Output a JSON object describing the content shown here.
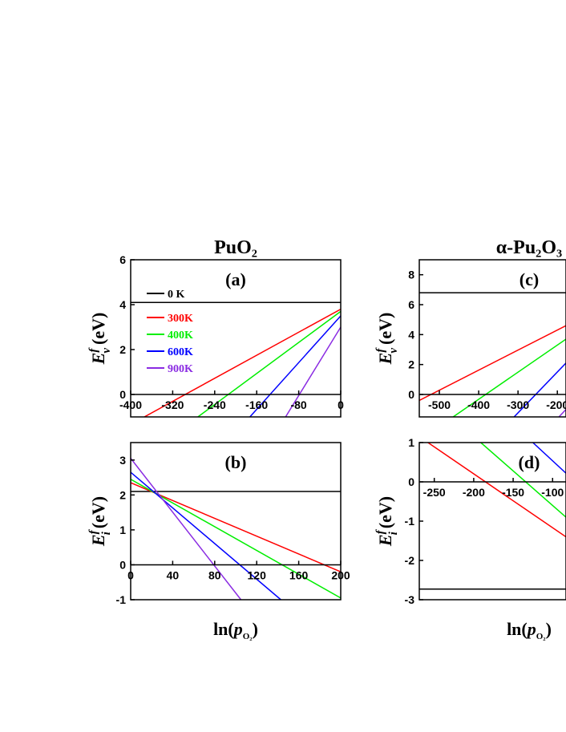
{
  "chart_data": [
    {
      "type": "line",
      "title": "PuO₂",
      "panel_label": "(a)",
      "ylabel_symbol": "E",
      "ylabel_sup": "f",
      "ylabel_sub": "v",
      "ylabel_unit": "(eV)",
      "xlim": [
        -400,
        0
      ],
      "ylim": [
        -1,
        6
      ],
      "xticks": [
        -400,
        -320,
        -240,
        -160,
        -80,
        0
      ],
      "yticks": [
        0,
        2,
        4,
        6
      ],
      "legend": "upper left",
      "series": [
        {
          "name": "0 K",
          "color": "#000000",
          "x": [
            -400,
            0
          ],
          "values": [
            4.1,
            4.1
          ]
        },
        {
          "name": "300K",
          "color": "#ff0000",
          "x": [
            -374,
            0
          ],
          "values": [
            -1,
            3.8
          ]
        },
        {
          "name": "400K",
          "color": "#00ee00",
          "x": [
            -272,
            0
          ],
          "values": [
            -1,
            3.7
          ]
        },
        {
          "name": "600K",
          "color": "#0000ff",
          "x": [
            -173,
            0
          ],
          "values": [
            -1,
            3.5
          ]
        },
        {
          "name": "900K",
          "color": "#8a2be2",
          "x": [
            -105,
            0
          ],
          "values": [
            -1,
            3.0
          ]
        }
      ]
    },
    {
      "type": "line",
      "panel_label": "(b)",
      "ylabel_symbol": "E",
      "ylabel_sup": "f",
      "ylabel_sub": "i",
      "ylabel_unit": "(eV)",
      "xlabel": "ln(",
      "xlabel_var": "p",
      "xlabel_sub": "O₂",
      "xlabel_end": ")",
      "xlim": [
        0,
        200
      ],
      "ylim": [
        -1,
        3.5
      ],
      "xticks": [
        0,
        40,
        80,
        120,
        160,
        200
      ],
      "yticks": [
        -1,
        0,
        1,
        2,
        3
      ],
      "series": [
        {
          "color": "#000000",
          "x": [
            0,
            200
          ],
          "values": [
            2.1,
            2.1
          ]
        },
        {
          "color": "#ff0000",
          "x": [
            0,
            200
          ],
          "values": [
            2.35,
            -0.2
          ]
        },
        {
          "color": "#00ee00",
          "x": [
            0,
            200
          ],
          "values": [
            2.45,
            -0.95
          ]
        },
        {
          "color": "#0000ff",
          "x": [
            0,
            143
          ],
          "values": [
            2.65,
            -1
          ]
        },
        {
          "color": "#8a2be2",
          "x": [
            0,
            105
          ],
          "values": [
            3.05,
            -1
          ]
        }
      ]
    },
    {
      "type": "line",
      "title": "α-Pu₂O₃",
      "panel_label": "(c)",
      "ylabel_symbol": "E",
      "ylabel_sup": "f",
      "ylabel_sub": "v",
      "ylabel_unit": "(eV)",
      "xlim": [
        -551,
        -178
      ],
      "ylim": [
        -1.5,
        9
      ],
      "xticks": [
        -500,
        -400,
        -300,
        -200
      ],
      "yticks": [
        0,
        2,
        4,
        6,
        8
      ],
      "series": [
        {
          "color": "#000000",
          "x": [
            -551,
            -178
          ],
          "values": [
            6.8,
            6.8
          ]
        },
        {
          "color": "#ff0000",
          "x": [
            -551,
            -178
          ],
          "values": [
            -0.4,
            4.6
          ]
        },
        {
          "color": "#00ee00",
          "x": [
            -465,
            -178
          ],
          "values": [
            -1.5,
            3.7
          ]
        },
        {
          "color": "#0000ff",
          "x": [
            -310,
            -178
          ],
          "values": [
            -1.5,
            2.1
          ]
        },
        {
          "color": "#8a2be2",
          "x": [
            -196,
            -178
          ],
          "values": [
            -1.5,
            -1
          ]
        }
      ]
    },
    {
      "type": "line",
      "panel_label": "(d)",
      "ylabel_symbol": "E",
      "ylabel_sup": "f",
      "ylabel_sub": "i",
      "ylabel_unit": "(eV)",
      "xlabel": "ln(",
      "xlabel_var": "p",
      "xlabel_sub": "O₂",
      "xlabel_end": ")",
      "xlim": [
        -269,
        -83
      ],
      "ylim": [
        -3,
        1
      ],
      "xticks": [
        -250,
        -200,
        -150,
        -100
      ],
      "yticks": [
        -3,
        -2,
        -1,
        0,
        1
      ],
      "series": [
        {
          "color": "#000000",
          "x": [
            -269,
            -83
          ],
          "values": [
            -2.73,
            -2.73
          ]
        },
        {
          "color": "#ff0000",
          "x": [
            -258,
            -83
          ],
          "values": [
            1,
            -1.4
          ]
        },
        {
          "color": "#00ee00",
          "x": [
            -191,
            -83
          ],
          "values": [
            1,
            -0.9
          ]
        },
        {
          "color": "#0000ff",
          "x": [
            -125,
            -83
          ],
          "values": [
            1,
            0.22
          ]
        }
      ]
    }
  ]
}
